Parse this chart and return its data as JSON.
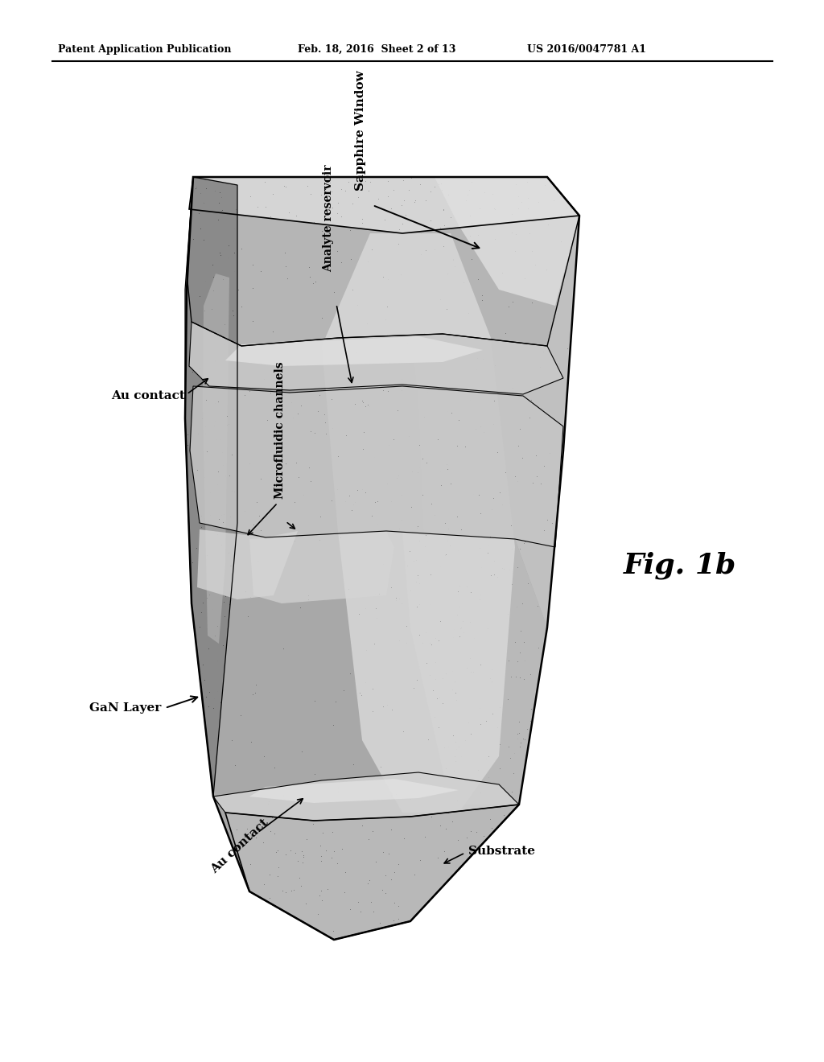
{
  "header_left": "Patent Application Publication",
  "header_center": "Feb. 18, 2016  Sheet 2 of 13",
  "header_right": "US 2016/0047781 A1",
  "fig_label": "Fig. 1b",
  "background_color": "#ffffff",
  "labels": {
    "sapphire_window": "Sapphire Window",
    "analyte_reservoir": "Analyte reservoir",
    "au_contact_top": "Au contact",
    "microfluidic_channels": "Microfluidic channels",
    "gan_layer": "GaN Layer",
    "au_contact_bottom": "Au contact",
    "substrate": "Substrate"
  }
}
